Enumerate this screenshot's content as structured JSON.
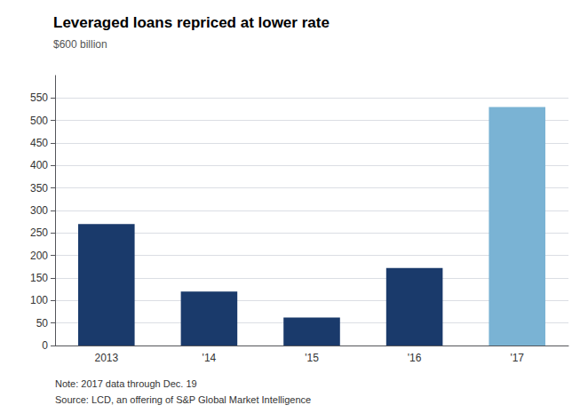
{
  "chart_data": {
    "type": "bar",
    "title": "Leveraged loans repriced at lower rate",
    "subtitle": "$600 billion",
    "categories": [
      "2013",
      "'14",
      "'15",
      "'16",
      "'17"
    ],
    "values": [
      270,
      120,
      62,
      172,
      530
    ],
    "colors": [
      "#1a3a6b",
      "#1a3a6b",
      "#1a3a6b",
      "#1a3a6b",
      "#7ab3d4"
    ],
    "ylim": [
      0,
      600
    ],
    "yticks": [
      0,
      50,
      100,
      150,
      200,
      250,
      300,
      350,
      400,
      450,
      500,
      550
    ],
    "grid": true,
    "annotations": [
      "Note: 2017 data through Dec. 19",
      "Source: LCD, an offering of S&P Global Market Intelligence"
    ]
  }
}
